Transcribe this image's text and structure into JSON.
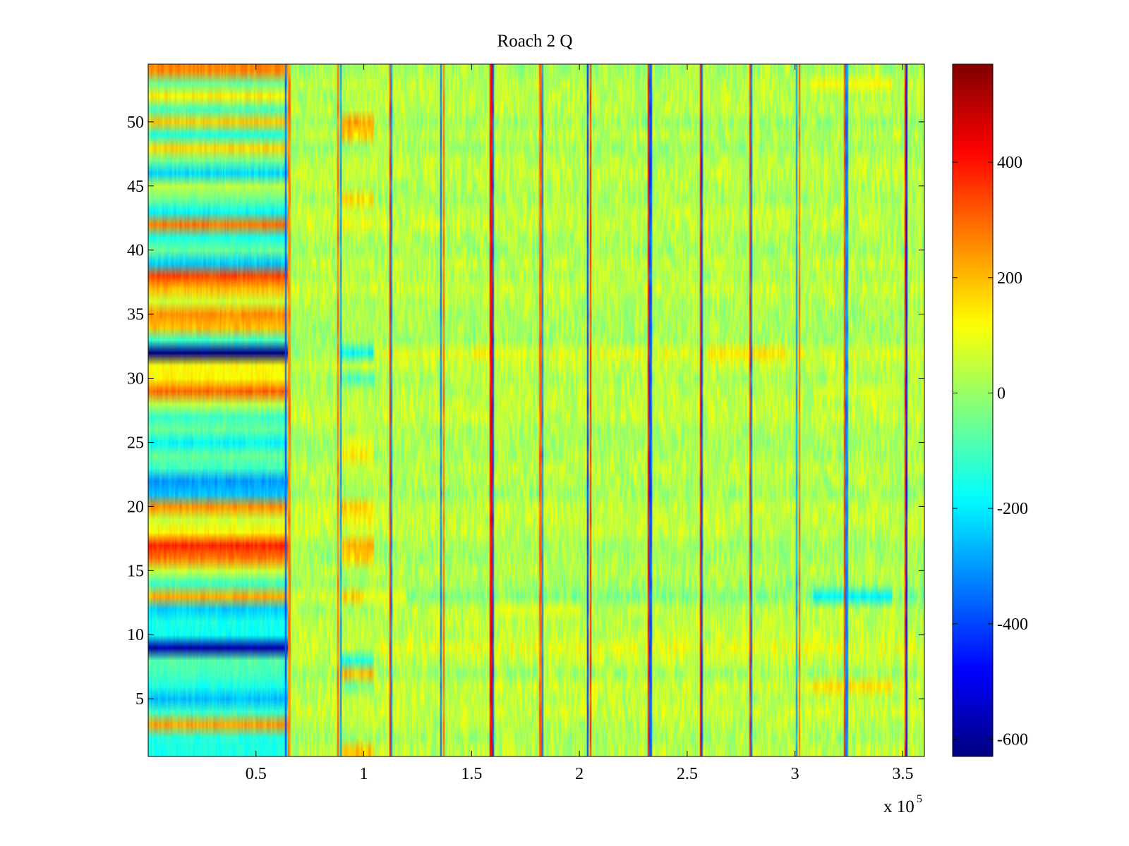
{
  "chart_data": {
    "type": "heatmap",
    "title": "Roach 2 Q",
    "xlabel": "",
    "ylabel": "",
    "x_exponent_label": "x 10",
    "x_exponent": "5",
    "xlim": [
      0,
      3.6
    ],
    "ylim": [
      0.5,
      54.5
    ],
    "x_ticks": [
      0.5,
      1,
      1.5,
      2,
      2.5,
      3,
      3.5
    ],
    "x_tick_labels": [
      "0.5",
      "1",
      "1.5",
      "2",
      "2.5",
      "3",
      "3.5"
    ],
    "y_ticks": [
      5,
      10,
      15,
      20,
      25,
      30,
      35,
      40,
      45,
      50
    ],
    "y_tick_labels": [
      "5",
      "10",
      "15",
      "20",
      "25",
      "30",
      "35",
      "40",
      "45",
      "50"
    ],
    "colorbar": {
      "colormap": "jet",
      "limits": [
        -630,
        570
      ],
      "ticks": [
        -600,
        -400,
        -200,
        0,
        200,
        400
      ],
      "tick_labels": [
        "-600",
        "-400",
        "-200",
        "0",
        "200",
        "400"
      ]
    },
    "rows": 54,
    "segments_x": [
      0,
      0.65,
      0.9,
      1.05,
      3.6
    ],
    "row_values_segment1": {
      "1": -150,
      "2": -140,
      "3": 230,
      "4": -120,
      "5": -260,
      "6": -150,
      "7": -100,
      "8": -80,
      "9": -580,
      "10": -170,
      "11": -150,
      "12": -230,
      "13": 220,
      "14": -110,
      "15": 60,
      "16": 280,
      "17": 380,
      "18": 130,
      "19": 60,
      "20": 250,
      "21": -250,
      "22": -300,
      "23": -110,
      "24": -60,
      "25": -180,
      "26": -60,
      "27": -110,
      "28": 40,
      "29": 300,
      "30": 130,
      "31": 120,
      "32": -630,
      "33": -110,
      "34": 200,
      "35": 250,
      "36": 60,
      "37": 200,
      "38": 340,
      "39": -240,
      "40": -60,
      "41": -150,
      "42": 280,
      "43": -180,
      "44": -50,
      "45": 40,
      "46": -220,
      "47": -50,
      "48": 170,
      "49": -150,
      "50": 180,
      "51": -100,
      "52": 140,
      "53": -60,
      "54": 260
    },
    "row_values_segment3": {
      "1": 180,
      "6": -40,
      "7": 200,
      "8": -150,
      "13": 170,
      "16": 170,
      "17": 200,
      "19": 120,
      "20": 180,
      "24": 130,
      "25": 90,
      "30": -100,
      "32": -180,
      "42": 100,
      "44": 150,
      "49": 170,
      "50": 220
    },
    "row_values_segment4": {
      "6": 60,
      "9": 90,
      "12": 40,
      "13": -30,
      "29": 40,
      "32": 80,
      "44": 20,
      "52": 40
    },
    "local_bands": [
      {
        "x": [
          3.08,
          3.45
        ],
        "row": 6,
        "value": 150
      },
      {
        "x": [
          3.08,
          3.45
        ],
        "row": 13,
        "value": -190
      },
      {
        "x": [
          3.08,
          3.45
        ],
        "row": 29,
        "value": 80
      },
      {
        "x": [
          3.08,
          3.45
        ],
        "row": 53,
        "value": 120
      },
      {
        "x": [
          1.5,
          1.6
        ],
        "row": 32,
        "value": 140
      },
      {
        "x": [
          2.6,
          2.95
        ],
        "row": 32,
        "value": 150
      },
      {
        "x": [
          1.0,
          1.2
        ],
        "row": 13,
        "value": 90
      },
      {
        "x": [
          1.6,
          2.0
        ],
        "row": 12,
        "value": 90
      }
    ],
    "vertical_stripes": [
      {
        "x": 0.64,
        "value": -400
      },
      {
        "x": 0.655,
        "value": 260
      },
      {
        "x": 0.88,
        "value": 300
      },
      {
        "x": 0.895,
        "value": -320
      },
      {
        "x": 1.12,
        "value": 380
      },
      {
        "x": 1.13,
        "value": -300
      },
      {
        "x": 1.36,
        "value": -360
      },
      {
        "x": 1.37,
        "value": 300
      },
      {
        "x": 1.59,
        "value": 420
      },
      {
        "x": 1.6,
        "value": -380
      },
      {
        "x": 1.82,
        "value": 300
      },
      {
        "x": 1.83,
        "value": -320
      },
      {
        "x": 2.04,
        "value": -450
      },
      {
        "x": 2.05,
        "value": 380
      },
      {
        "x": 2.32,
        "value": 400
      },
      {
        "x": 2.33,
        "value": -380
      },
      {
        "x": 2.56,
        "value": 420
      },
      {
        "x": 2.57,
        "value": -380
      },
      {
        "x": 2.79,
        "value": 360
      },
      {
        "x": 2.8,
        "value": -340
      },
      {
        "x": 3.01,
        "value": -300
      },
      {
        "x": 3.02,
        "value": 300
      },
      {
        "x": 3.23,
        "value": 340
      },
      {
        "x": 3.24,
        "value": -320
      },
      {
        "x": 3.51,
        "value": 380
      },
      {
        "x": 3.52,
        "value": -460
      }
    ],
    "background_value": 30
  }
}
